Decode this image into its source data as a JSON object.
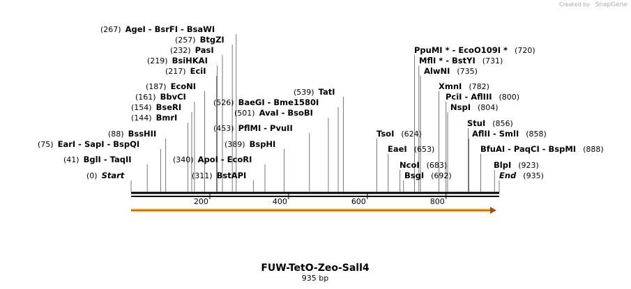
{
  "watermark": {
    "prefix": "Created by",
    "brand": "SnapGene"
  },
  "map": {
    "title": "FUW-TetO-Zeo-Sall4",
    "subtitle": "935 bp",
    "ruler_ticks": [
      200,
      400,
      600,
      800
    ],
    "sites": [
      {
        "name": "AgeI  - BsrFI  - BsaWI",
        "pos": {
          "value": 267,
          "label": "(267)"
        }
      },
      {
        "name": "BtgZI",
        "pos": {
          "value": 257,
          "label": "(257)"
        }
      },
      {
        "name": "PasI",
        "pos": {
          "value": 232,
          "label": "(232)"
        }
      },
      {
        "name": "BsiHKAI",
        "pos": {
          "value": 219,
          "label": "(219)"
        }
      },
      {
        "name": "EciI",
        "pos": {
          "value": 217,
          "label": "(217)"
        }
      },
      {
        "name": "EcoNI",
        "pos": {
          "value": 187,
          "label": "(187)"
        }
      },
      {
        "name": "BbvCI",
        "pos": {
          "value": 161,
          "label": "(161)"
        }
      },
      {
        "name": "BseRI",
        "pos": {
          "value": 154,
          "label": "(154)"
        }
      },
      {
        "name": "BmrI",
        "pos": {
          "value": 144,
          "label": "(144)"
        }
      },
      {
        "name": "BssHII",
        "pos": {
          "value": 88,
          "label": "(88)"
        }
      },
      {
        "name": "EarI  - SapI  - BspQI",
        "pos": {
          "value": 75,
          "label": "(75)"
        }
      },
      {
        "name": "BglI  - TaqII",
        "pos": {
          "value": 41,
          "label": "(41)"
        }
      },
      {
        "name": "Start",
        "pos": {
          "value": 0,
          "label": "(0)"
        }
      },
      {
        "name": "ApoI  - EcoRI",
        "pos": {
          "value": 340,
          "label": "(340)"
        }
      },
      {
        "name": "BstAPI",
        "pos": {
          "value": 311,
          "label": "(311)"
        }
      },
      {
        "name": "BaeGI  - Bme1580I",
        "pos": {
          "value": 526,
          "label": "(526)"
        }
      },
      {
        "name": "AvaI  - BsoBI",
        "pos": {
          "value": 501,
          "label": "(501)"
        }
      },
      {
        "name": "PflMI  - PvuII",
        "pos": {
          "value": 453,
          "label": "(453)"
        }
      },
      {
        "name": "BspHI",
        "pos": {
          "value": 389,
          "label": "(389)"
        }
      },
      {
        "name": "TatI",
        "pos": {
          "value": 539,
          "label": "(539)"
        }
      },
      {
        "name": "PpuMI *  - EcoO109I *",
        "pos": {
          "value": 720,
          "label": "(720)"
        }
      },
      {
        "name": "MflI *  - BstYI",
        "pos": {
          "value": 731,
          "label": "(731)"
        }
      },
      {
        "name": "AlwNI",
        "pos": {
          "value": 735,
          "label": "(735)"
        }
      },
      {
        "name": "XmnI",
        "pos": {
          "value": 782,
          "label": "(782)"
        }
      },
      {
        "name": "PciI  - AflIII",
        "pos": {
          "value": 800,
          "label": "(800)"
        }
      },
      {
        "name": "NspI",
        "pos": {
          "value": 804,
          "label": "(804)"
        }
      },
      {
        "name": "StuI",
        "pos": {
          "value": 856,
          "label": "(856)"
        }
      },
      {
        "name": "AflII  - SmlI",
        "pos": {
          "value": 858,
          "label": "(858)"
        }
      },
      {
        "name": "BfuAI  - PaqCI  - BspMI",
        "pos": {
          "value": 888,
          "label": "(888)"
        }
      },
      {
        "name": "BlpI",
        "pos": {
          "value": 923,
          "label": "(923)"
        }
      },
      {
        "name": "End",
        "pos": {
          "value": 935,
          "label": "(935)"
        }
      },
      {
        "name": "TsoI",
        "pos": {
          "value": 624,
          "label": "(624)"
        }
      },
      {
        "name": "EaeI",
        "pos": {
          "value": 653,
          "label": "(653)"
        }
      },
      {
        "name": "NcoI",
        "pos": {
          "value": 683,
          "label": "(683)"
        }
      },
      {
        "name": "BsgI",
        "pos": {
          "value": 692,
          "label": "(692)"
        }
      }
    ]
  }
}
